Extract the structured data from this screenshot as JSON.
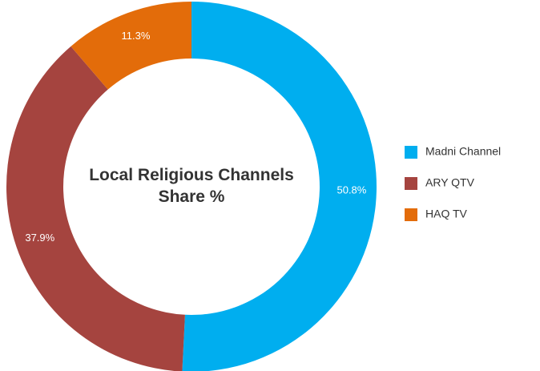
{
  "chart_data": {
    "type": "pie",
    "title": "Local Religious Channels Share %",
    "categories": [
      "Madni Channel",
      "ARY QTV",
      "HAQ TV"
    ],
    "values": [
      50.8,
      37.9,
      11.3
    ],
    "value_labels": [
      "50.8%",
      "37.9%",
      "11.3%"
    ],
    "colors": [
      "#00aeef",
      "#a5443f",
      "#e36c0a"
    ],
    "legend": "right"
  }
}
